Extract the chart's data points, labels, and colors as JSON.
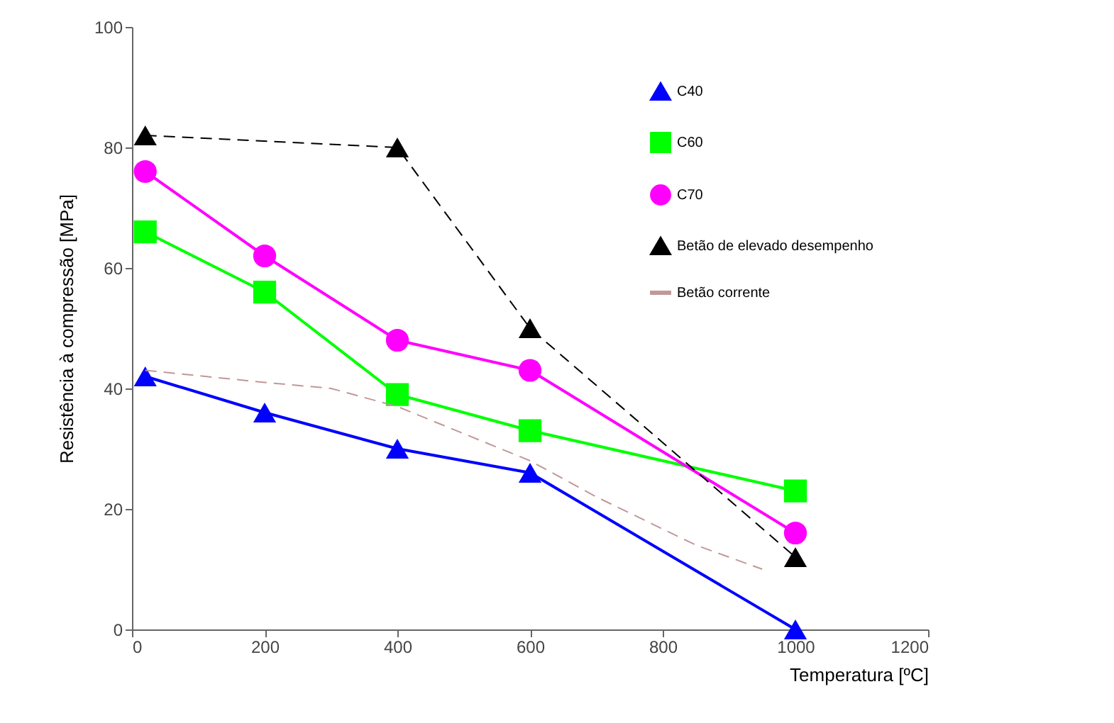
{
  "chart_data": {
    "type": "line",
    "xlabel": "Temperatura [ºC]",
    "ylabel": "Resistência à compressão [MPa]",
    "xlim": [
      0,
      1200
    ],
    "xticks": [
      0,
      200,
      400,
      600,
      800,
      1000,
      1200
    ],
    "ylim": [
      0,
      100
    ],
    "yticks": [
      0,
      20,
      40,
      60,
      80,
      100
    ],
    "legend": "top right",
    "grid": false,
    "series": [
      {
        "name": "C40",
        "color": "#0000ff",
        "marker": "triangle",
        "line_style": "solid",
        "x": [
          20,
          200,
          400,
          600,
          1000
        ],
        "values": [
          42,
          36,
          30,
          26,
          0
        ]
      },
      {
        "name": "C60",
        "color": "#00ff00",
        "marker": "square",
        "line_style": "solid",
        "x": [
          20,
          200,
          400,
          600,
          1000
        ],
        "values": [
          66,
          56,
          39,
          33,
          23
        ]
      },
      {
        "name": "C70",
        "color": "#ff00ff",
        "marker": "circle",
        "line_style": "solid",
        "x": [
          20,
          200,
          400,
          600,
          1000
        ],
        "values": [
          76,
          62,
          48,
          43,
          16
        ]
      },
      {
        "name": "Betão de elevado desempenho",
        "color": "#000000",
        "marker": "triangle",
        "line_style": "dashed",
        "x": [
          20,
          400,
          600,
          1000
        ],
        "values": [
          82,
          80,
          50,
          12
        ]
      },
      {
        "name": "Betão corrente",
        "color": "#c09898",
        "marker": "none",
        "line_style": "dashed",
        "x": [
          20,
          200,
          300,
          400,
          600,
          700,
          850,
          950
        ],
        "values": [
          43,
          41,
          40,
          37,
          28,
          22,
          14,
          10
        ]
      }
    ]
  }
}
